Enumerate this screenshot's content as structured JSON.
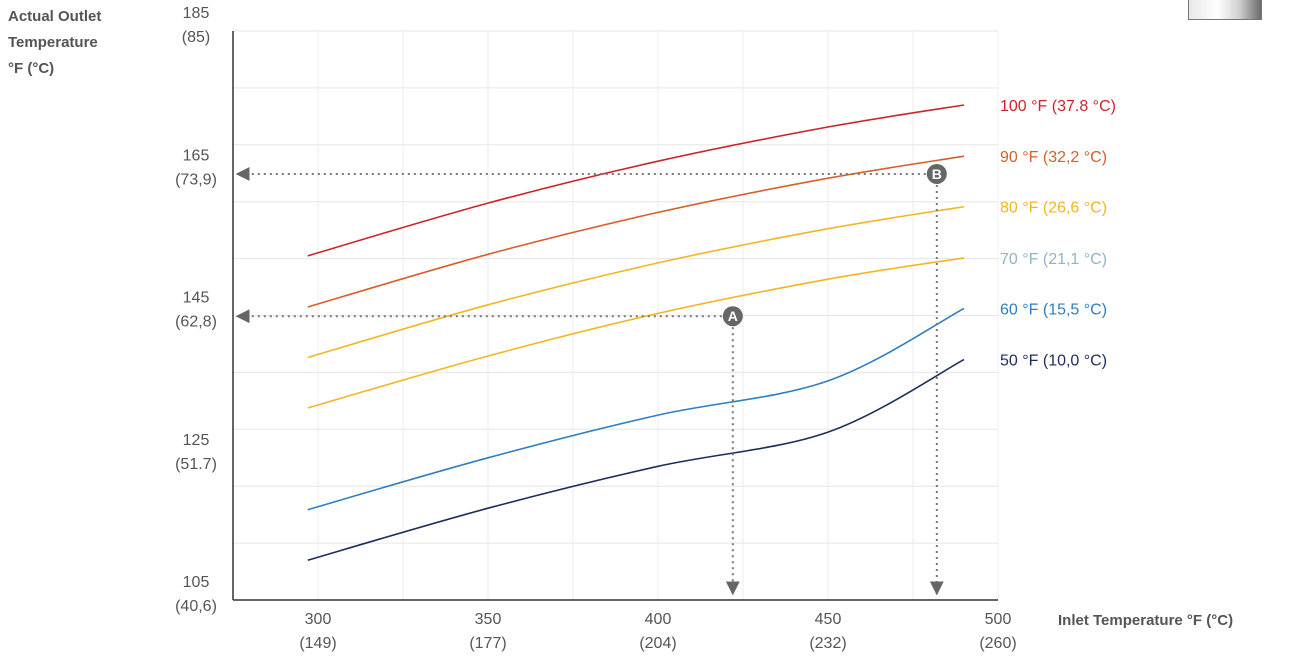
{
  "chart_data": {
    "type": "line",
    "ylabel": [
      "Actual Outlet",
      "Temperature",
      "°F (°C)"
    ],
    "xlabel": "Inlet Temperature °F (°C)",
    "xlim": [
      275,
      500
    ],
    "ylim": [
      105,
      185
    ],
    "x_ticks": [
      {
        "value": 300,
        "label": "300",
        "sub": "(149)"
      },
      {
        "value": 350,
        "label": "350",
        "sub": "(177)"
      },
      {
        "value": 400,
        "label": "400",
        "sub": "(204)"
      },
      {
        "value": 450,
        "label": "450",
        "sub": "(232)"
      },
      {
        "value": 500,
        "label": "500",
        "sub": "(260)"
      }
    ],
    "y_ticks": [
      {
        "value": 185,
        "label": "185",
        "sub": "(85)"
      },
      {
        "value": 165,
        "label": "165",
        "sub": "(73,9)"
      },
      {
        "value": 145,
        "label": "145",
        "sub": "(62,8)"
      },
      {
        "value": 125,
        "label": "125",
        "sub": "(51.7)"
      },
      {
        "value": 105,
        "label": "105",
        "sub": "(40,6)"
      }
    ],
    "y_gridlines": [
      105,
      113,
      121,
      129,
      137,
      145,
      153,
      161,
      169,
      177,
      185
    ],
    "x_gridlines": [
      300,
      325,
      350,
      375,
      400,
      425,
      450,
      475,
      500
    ],
    "grid": true,
    "series": [
      {
        "name": "100 °F (37.8 °C)",
        "color": "#c9262c",
        "x": [
          297,
          350,
          400,
          450,
          490
        ],
        "y": [
          153.4,
          160.8,
          166.7,
          171.5,
          174.6
        ]
      },
      {
        "name": "90 °F (32,2 °C)",
        "color": "#d65f2b",
        "x": [
          297,
          350,
          400,
          450,
          490
        ],
        "y": [
          146.2,
          153.6,
          159.5,
          164.3,
          167.4
        ]
      },
      {
        "name": "80 °F (26,6 °C)",
        "color": "#f4b522",
        "x": [
          297,
          350,
          400,
          450,
          490
        ],
        "y": [
          139.1,
          146.5,
          152.4,
          157.2,
          160.3
        ]
      },
      {
        "name": "70 °F (21,1 °C)",
        "color": "#f4b522",
        "label_color": "#8fb4c7",
        "x": [
          297,
          350,
          400,
          450,
          490
        ],
        "y": [
          132.0,
          139.3,
          145.3,
          150.1,
          153.1
        ]
      },
      {
        "name": "60 °F (15,5 °C)",
        "color": "#2e7ec1",
        "x": [
          297,
          350,
          400,
          450,
          490
        ],
        "y": [
          117.7,
          125.0,
          131.0,
          135.8,
          146.0
        ]
      },
      {
        "name": "50 °F (10,0 °C)",
        "color": "#1d2d5c",
        "x": [
          297,
          350,
          400,
          450,
          490
        ],
        "y": [
          110.6,
          117.9,
          123.8,
          128.6,
          138.8
        ]
      }
    ],
    "annotations": [
      {
        "label": "A",
        "x": 422,
        "y": 144.9,
        "line_color": "#777777"
      },
      {
        "label": "B",
        "x": 482,
        "y": 164.9,
        "line_color": "#777777"
      }
    ]
  }
}
